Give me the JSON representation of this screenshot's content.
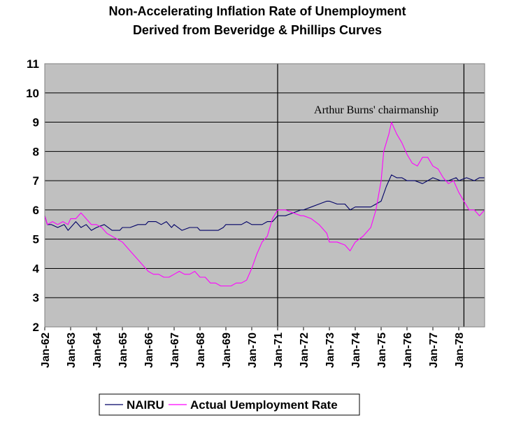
{
  "chart_data": {
    "type": "line",
    "title": "Non-Accelerating Inflation Rate of Unemployment",
    "subtitle": "Derived from Beveridge & Phillips Curves",
    "xlabel": "",
    "ylabel": "",
    "ylim": [
      2,
      11
    ],
    "xlim": [
      1962.0,
      1979.0
    ],
    "yticks": [
      "2",
      "3",
      "4",
      "5",
      "6",
      "7",
      "8",
      "9",
      "10",
      "11"
    ],
    "xticks": [
      "Jan-62",
      "Jan-63",
      "Jan-64",
      "Jan-65",
      "Jan-66",
      "Jan-67",
      "Jan-68",
      "Jan-69",
      "Jan-70",
      "Jan-71",
      "Jan-72",
      "Jan-73",
      "Jan-74",
      "Jan-75",
      "Jan-76",
      "Jan-77",
      "Jan-78"
    ],
    "grid": true,
    "plot_background": "#c0c0c0",
    "legend_position": "bottom",
    "annotation": "Arthur Burns' chairmanship",
    "vertical_markers": [
      1971.0,
      1978.2
    ],
    "series": [
      {
        "name": "NAIRU",
        "color": "#000066",
        "points": [
          [
            1962.0,
            5.8
          ],
          [
            1962.1,
            5.5
          ],
          [
            1962.25,
            5.5
          ],
          [
            1962.5,
            5.4
          ],
          [
            1962.75,
            5.5
          ],
          [
            1962.9,
            5.3
          ],
          [
            1963.0,
            5.4
          ],
          [
            1963.2,
            5.6
          ],
          [
            1963.4,
            5.4
          ],
          [
            1963.6,
            5.5
          ],
          [
            1963.8,
            5.3
          ],
          [
            1964.0,
            5.4
          ],
          [
            1964.3,
            5.5
          ],
          [
            1964.6,
            5.3
          ],
          [
            1964.9,
            5.3
          ],
          [
            1965.0,
            5.4
          ],
          [
            1965.3,
            5.4
          ],
          [
            1965.6,
            5.5
          ],
          [
            1965.9,
            5.5
          ],
          [
            1966.0,
            5.6
          ],
          [
            1966.3,
            5.6
          ],
          [
            1966.5,
            5.5
          ],
          [
            1966.7,
            5.6
          ],
          [
            1966.9,
            5.4
          ],
          [
            1967.0,
            5.5
          ],
          [
            1967.3,
            5.3
          ],
          [
            1967.6,
            5.4
          ],
          [
            1967.9,
            5.4
          ],
          [
            1968.0,
            5.3
          ],
          [
            1968.3,
            5.3
          ],
          [
            1968.5,
            5.3
          ],
          [
            1968.7,
            5.3
          ],
          [
            1968.9,
            5.4
          ],
          [
            1969.0,
            5.5
          ],
          [
            1969.3,
            5.5
          ],
          [
            1969.6,
            5.5
          ],
          [
            1969.8,
            5.6
          ],
          [
            1970.0,
            5.5
          ],
          [
            1970.2,
            5.5
          ],
          [
            1970.4,
            5.5
          ],
          [
            1970.6,
            5.6
          ],
          [
            1970.8,
            5.6
          ],
          [
            1971.0,
            5.8
          ],
          [
            1971.3,
            5.8
          ],
          [
            1971.6,
            5.9
          ],
          [
            1971.9,
            6.0
          ],
          [
            1972.0,
            6.0
          ],
          [
            1972.3,
            6.1
          ],
          [
            1972.6,
            6.2
          ],
          [
            1972.9,
            6.3
          ],
          [
            1973.0,
            6.3
          ],
          [
            1973.3,
            6.2
          ],
          [
            1973.6,
            6.2
          ],
          [
            1973.8,
            6.0
          ],
          [
            1974.0,
            6.1
          ],
          [
            1974.3,
            6.1
          ],
          [
            1974.6,
            6.1
          ],
          [
            1974.8,
            6.2
          ],
          [
            1975.0,
            6.3
          ],
          [
            1975.2,
            6.8
          ],
          [
            1975.4,
            7.2
          ],
          [
            1975.6,
            7.1
          ],
          [
            1975.8,
            7.1
          ],
          [
            1976.0,
            7.0
          ],
          [
            1976.3,
            7.0
          ],
          [
            1976.6,
            6.9
          ],
          [
            1976.8,
            7.0
          ],
          [
            1977.0,
            7.1
          ],
          [
            1977.3,
            7.0
          ],
          [
            1977.6,
            7.0
          ],
          [
            1977.9,
            7.1
          ],
          [
            1978.0,
            7.0
          ],
          [
            1978.3,
            7.1
          ],
          [
            1978.6,
            7.0
          ],
          [
            1978.8,
            7.1
          ],
          [
            1979.0,
            7.1
          ]
        ]
      },
      {
        "name": "Actual Uemployment Rate",
        "color": "#ff00ff",
        "points": [
          [
            1962.0,
            5.8
          ],
          [
            1962.1,
            5.5
          ],
          [
            1962.3,
            5.6
          ],
          [
            1962.5,
            5.5
          ],
          [
            1962.7,
            5.6
          ],
          [
            1962.9,
            5.5
          ],
          [
            1963.0,
            5.7
          ],
          [
            1963.2,
            5.7
          ],
          [
            1963.4,
            5.9
          ],
          [
            1963.6,
            5.7
          ],
          [
            1963.8,
            5.5
          ],
          [
            1964.0,
            5.5
          ],
          [
            1964.2,
            5.4
          ],
          [
            1964.4,
            5.2
          ],
          [
            1964.6,
            5.1
          ],
          [
            1964.8,
            5.0
          ],
          [
            1965.0,
            4.9
          ],
          [
            1965.2,
            4.7
          ],
          [
            1965.4,
            4.5
          ],
          [
            1965.6,
            4.3
          ],
          [
            1965.8,
            4.1
          ],
          [
            1966.0,
            3.9
          ],
          [
            1966.2,
            3.8
          ],
          [
            1966.4,
            3.8
          ],
          [
            1966.6,
            3.7
          ],
          [
            1966.8,
            3.7
          ],
          [
            1967.0,
            3.8
          ],
          [
            1967.2,
            3.9
          ],
          [
            1967.4,
            3.8
          ],
          [
            1967.6,
            3.8
          ],
          [
            1967.8,
            3.9
          ],
          [
            1968.0,
            3.7
          ],
          [
            1968.2,
            3.7
          ],
          [
            1968.4,
            3.5
          ],
          [
            1968.6,
            3.5
          ],
          [
            1968.8,
            3.4
          ],
          [
            1969.0,
            3.4
          ],
          [
            1969.2,
            3.4
          ],
          [
            1969.4,
            3.5
          ],
          [
            1969.6,
            3.5
          ],
          [
            1969.8,
            3.6
          ],
          [
            1970.0,
            4.0
          ],
          [
            1970.2,
            4.5
          ],
          [
            1970.4,
            4.9
          ],
          [
            1970.6,
            5.1
          ],
          [
            1970.8,
            5.7
          ],
          [
            1971.0,
            6.0
          ],
          [
            1971.3,
            6.0
          ],
          [
            1971.6,
            5.9
          ],
          [
            1971.9,
            5.8
          ],
          [
            1972.0,
            5.8
          ],
          [
            1972.3,
            5.7
          ],
          [
            1972.6,
            5.5
          ],
          [
            1972.9,
            5.2
          ],
          [
            1973.0,
            4.9
          ],
          [
            1973.3,
            4.9
          ],
          [
            1973.6,
            4.8
          ],
          [
            1973.8,
            4.6
          ],
          [
            1974.0,
            4.9
          ],
          [
            1974.3,
            5.1
          ],
          [
            1974.6,
            5.4
          ],
          [
            1974.8,
            6.0
          ],
          [
            1975.0,
            7.0
          ],
          [
            1975.1,
            8.0
          ],
          [
            1975.3,
            8.6
          ],
          [
            1975.4,
            9.0
          ],
          [
            1975.6,
            8.6
          ],
          [
            1975.8,
            8.3
          ],
          [
            1976.0,
            7.9
          ],
          [
            1976.2,
            7.6
          ],
          [
            1976.4,
            7.5
          ],
          [
            1976.6,
            7.8
          ],
          [
            1976.8,
            7.8
          ],
          [
            1977.0,
            7.5
          ],
          [
            1977.2,
            7.4
          ],
          [
            1977.4,
            7.1
          ],
          [
            1977.6,
            6.9
          ],
          [
            1977.8,
            7.0
          ],
          [
            1978.0,
            6.6
          ],
          [
            1978.2,
            6.3
          ],
          [
            1978.4,
            6.0
          ],
          [
            1978.6,
            6.0
          ],
          [
            1978.8,
            5.8
          ],
          [
            1979.0,
            6.0
          ]
        ]
      }
    ]
  }
}
